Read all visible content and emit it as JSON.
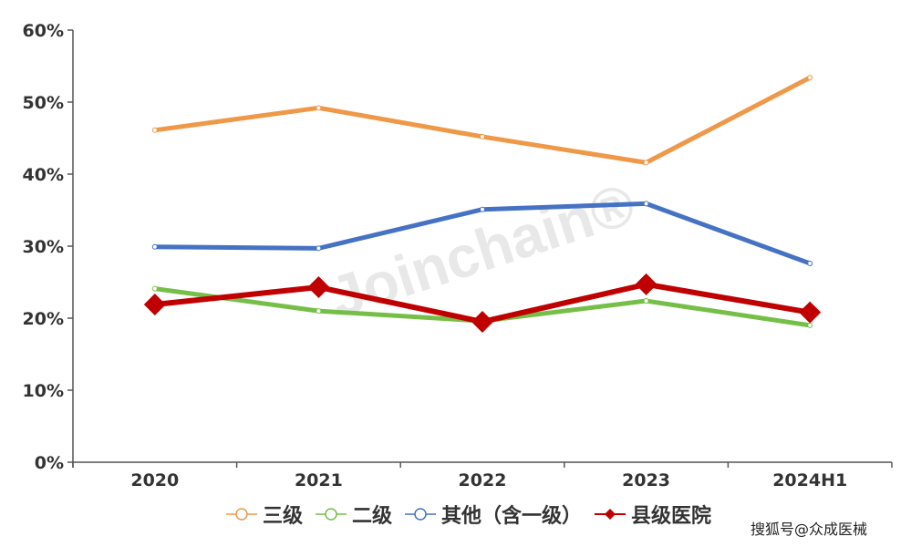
{
  "chart_data": {
    "type": "line",
    "title": "",
    "xlabel": "",
    "ylabel": "",
    "categories": [
      "2020",
      "2021",
      "2022",
      "2023",
      "2024H1"
    ],
    "ylim": [
      0,
      60
    ],
    "yticks": [
      "0%",
      "10%",
      "20%",
      "30%",
      "40%",
      "50%",
      "60%"
    ],
    "grid": false,
    "legend_position": "bottom",
    "series": [
      {
        "name": "三级",
        "color": "#EE9848",
        "marker": "circle",
        "values": [
          46.1,
          49.2,
          45.2,
          41.6,
          53.4
        ]
      },
      {
        "name": "二级",
        "color": "#75BF48",
        "marker": "circle",
        "values": [
          24.1,
          21.0,
          19.6,
          22.4,
          19.0
        ]
      },
      {
        "name": "其他（含一级）",
        "color": "#4672C4",
        "marker": "circle",
        "values": [
          29.9,
          29.7,
          35.1,
          35.9,
          27.6
        ]
      },
      {
        "name": "县级医院",
        "color": "#C00000",
        "marker": "diamond",
        "values": [
          21.9,
          24.3,
          19.5,
          24.7,
          20.8
        ]
      }
    ],
    "watermark": "Joinchain®"
  },
  "legend": {
    "items": [
      {
        "label": "三级",
        "color": "#EE9848"
      },
      {
        "label": "二级",
        "color": "#75BF48"
      },
      {
        "label": "其他（含一级）",
        "color": "#4672C4"
      },
      {
        "label": "县级医院",
        "color": "#C00000"
      }
    ]
  },
  "credit": "搜狐号@众成医械"
}
